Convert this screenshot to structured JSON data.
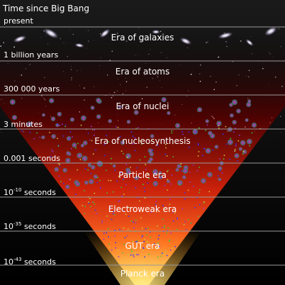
{
  "heading": "Time since Big Bang",
  "time_marks": [
    {
      "text": "present"
    },
    {
      "text": "1 billion years"
    },
    {
      "text": "300 000 years"
    },
    {
      "text": "3 minutes"
    },
    {
      "text": "0.001 seconds"
    },
    {
      "base": "10",
      "exp": "-10",
      "unit": "seconds"
    },
    {
      "base": "10",
      "exp": "-35",
      "unit": "seconds"
    },
    {
      "base": "10",
      "exp": "-43",
      "unit": "seconds"
    }
  ],
  "eras": [
    "Era of galaxies",
    "Era of atoms",
    "Era of nuclei",
    "Era of nucleosynthesis",
    "Particle era",
    "Electroweak era",
    "GUT era",
    "Planck era"
  ],
  "colors": {
    "cone_bottom": "#ffe66a",
    "cone_mid": "#ff5a1e",
    "cone_top": "#6a0000",
    "line": "#9a9a9a"
  }
}
